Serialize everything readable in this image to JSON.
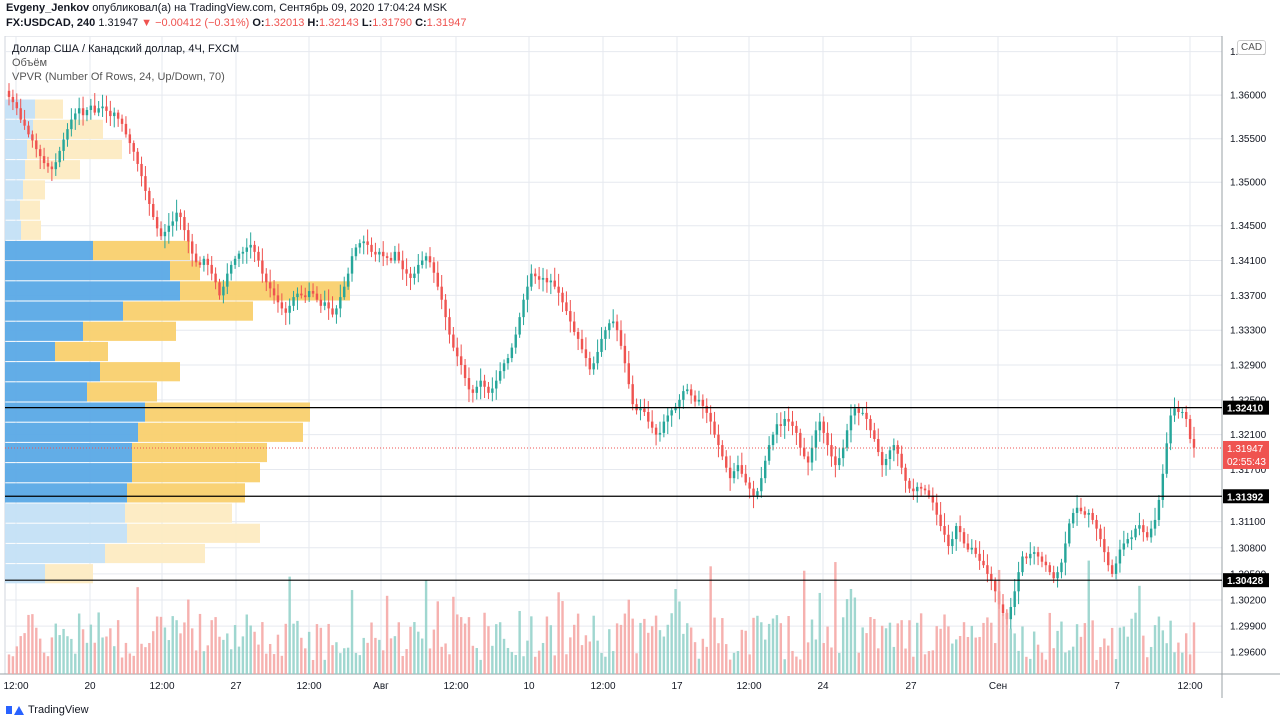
{
  "header": {
    "publisher": "Evgeny_Jenkov",
    "published_text": "опубликовал(а) на TradingView.com, Сентябрь 09, 2020 17:04:24 MSK",
    "symbol": "FX:USDCAD, 240",
    "last": "1.31947",
    "change_text": "▼ −0.00412 (−0.31%)",
    "o_label": "O:",
    "o_value": "1.32013",
    "h_label": "H:",
    "h_value": "1.32143",
    "l_label": "L:",
    "l_value": "1.31790",
    "c_label": "C:",
    "c_value": "1.31947"
  },
  "legend": {
    "title": "Доллар США / Канадский доллар, 4Ч, FXCM",
    "volume": "Объём",
    "vpvr": "VPVR (Number Of Rows, 24, Up/Down, 70)"
  },
  "currency_badge": "CAD",
  "footer": {
    "brand": "TradingView"
  },
  "colors": {
    "up": "#26a69a",
    "down": "#ef5350",
    "up_vol": "#8fd0c8",
    "down_vol": "#f5a3a1",
    "vp_up": "#5aa9e6",
    "vp_down": "#f9d06e",
    "vp_up_light": "#c4e0f5",
    "vp_down_light": "#fdebc2",
    "grid": "#e6e9ef"
  },
  "chart_data": {
    "type": "candlestick",
    "y_ticks": [
      "1.36500",
      "1.36000",
      "1.35500",
      "1.35000",
      "1.34500",
      "1.34100",
      "1.33700",
      "1.33300",
      "1.32900",
      "1.32500",
      "1.32100",
      "1.31700",
      "1.31100",
      "1.30800",
      "1.30500",
      "1.30200",
      "1.29900",
      "1.29600"
    ],
    "x_ticks": [
      "12:00",
      "20",
      "12:00",
      "27",
      "12:00",
      "Авг",
      "12:00",
      "10",
      "12:00",
      "17",
      "12:00",
      "24",
      "27",
      "Сен",
      "7",
      "12:00"
    ],
    "horizontal_lines": [
      "1.32410",
      "1.31392",
      "1.30428"
    ],
    "current_price": "1.31947",
    "countdown": "02:55:43",
    "ylim": [
      1.2935,
      1.3668
    ],
    "closes": [
      1.3598,
      1.3592,
      1.3585,
      1.3572,
      1.3565,
      1.3555,
      1.3548,
      1.3538,
      1.353,
      1.3522,
      1.3518,
      1.3515,
      1.3523,
      1.3536,
      1.3549,
      1.3561,
      1.3572,
      1.3579,
      1.3585,
      1.3577,
      1.3583,
      1.3588,
      1.358,
      1.3585,
      1.3587,
      1.3582,
      1.3576,
      1.358,
      1.3573,
      1.3567,
      1.3555,
      1.3545,
      1.3535,
      1.3521,
      1.3507,
      1.349,
      1.3475,
      1.346,
      1.3447,
      1.3438,
      1.3443,
      1.345,
      1.3455,
      1.3465,
      1.346,
      1.3445,
      1.3432,
      1.3418,
      1.3408,
      1.3405,
      1.3412,
      1.3405,
      1.3395,
      1.3385,
      1.337,
      1.338,
      1.3395,
      1.3405,
      1.3412,
      1.3418,
      1.342,
      1.3425,
      1.3428,
      1.342,
      1.341,
      1.3395,
      1.3385,
      1.3378,
      1.337,
      1.3362,
      1.3355,
      1.335,
      1.3358,
      1.3368,
      1.3372,
      1.337,
      1.3368,
      1.3375,
      1.3372,
      1.3365,
      1.3358,
      1.3362,
      1.3355,
      1.3348,
      1.3355,
      1.3368,
      1.338,
      1.3395,
      1.3415,
      1.3425,
      1.343,
      1.3432,
      1.3428,
      1.342,
      1.3417,
      1.342,
      1.3415,
      1.3413,
      1.341,
      1.342,
      1.341,
      1.34,
      1.3395,
      1.339,
      1.3395,
      1.3405,
      1.341,
      1.3415,
      1.3408,
      1.3396,
      1.338,
      1.3365,
      1.3345,
      1.3325,
      1.331,
      1.33,
      1.329,
      1.3275,
      1.3262,
      1.3258,
      1.3265,
      1.3272,
      1.3265,
      1.3258,
      1.3263,
      1.3272,
      1.3283,
      1.3292,
      1.3298,
      1.331,
      1.3325,
      1.3345,
      1.3365,
      1.338,
      1.3395,
      1.3392,
      1.3388,
      1.339,
      1.3385,
      1.3387,
      1.338,
      1.3373,
      1.3362,
      1.3352,
      1.334,
      1.3328,
      1.332,
      1.3308,
      1.3298,
      1.3285,
      1.3292,
      1.3305,
      1.332,
      1.333,
      1.3338,
      1.334,
      1.333,
      1.3312,
      1.3292,
      1.3268,
      1.3245,
      1.3238,
      1.324,
      1.3236,
      1.3225,
      1.3218,
      1.321,
      1.3212,
      1.3225,
      1.3232,
      1.3238,
      1.3242,
      1.325,
      1.326,
      1.3262,
      1.3255,
      1.3248,
      1.325,
      1.3243,
      1.3235,
      1.3225,
      1.321,
      1.3198,
      1.3185,
      1.3172,
      1.316,
      1.3168,
      1.3175,
      1.3165,
      1.3155,
      1.3148,
      1.314,
      1.3145,
      1.316,
      1.318,
      1.3198,
      1.321,
      1.3222,
      1.322,
      1.3228,
      1.3225,
      1.322,
      1.3212,
      1.3195,
      1.3185,
      1.3178,
      1.3195,
      1.3215,
      1.3225,
      1.3212,
      1.3198,
      1.3185,
      1.3175,
      1.3183,
      1.3195,
      1.3215,
      1.3232,
      1.324,
      1.3235,
      1.3235,
      1.3228,
      1.3215,
      1.3205,
      1.319,
      1.3175,
      1.3182,
      1.3192,
      1.3198,
      1.3188,
      1.3172,
      1.3157,
      1.3148,
      1.3145,
      1.315,
      1.3148,
      1.3146,
      1.314,
      1.3132,
      1.3118,
      1.3105,
      1.3095,
      1.3082,
      1.309,
      1.3105,
      1.3098,
      1.3085,
      1.3078,
      1.308,
      1.3073,
      1.3065,
      1.306,
      1.305,
      1.3042,
      1.303,
      1.3015,
      1.3005,
      1.2998,
      1.3012,
      1.303,
      1.3052,
      1.307,
      1.3068,
      1.3073,
      1.3075,
      1.307,
      1.3064,
      1.306,
      1.3052,
      1.3045,
      1.3052,
      1.3063,
      1.3085,
      1.3108,
      1.312,
      1.3126,
      1.3122,
      1.3118,
      1.312,
      1.3112,
      1.3102,
      1.309,
      1.3075,
      1.306,
      1.305,
      1.3062,
      1.3078,
      1.3085,
      1.309,
      1.3092,
      1.3102,
      1.3106,
      1.3098,
      1.3092,
      1.3102,
      1.3112,
      1.3135,
      1.3165,
      1.32,
      1.3232,
      1.324,
      1.3236,
      1.3236,
      1.3228,
      1.3205,
      1.3195
    ]
  }
}
